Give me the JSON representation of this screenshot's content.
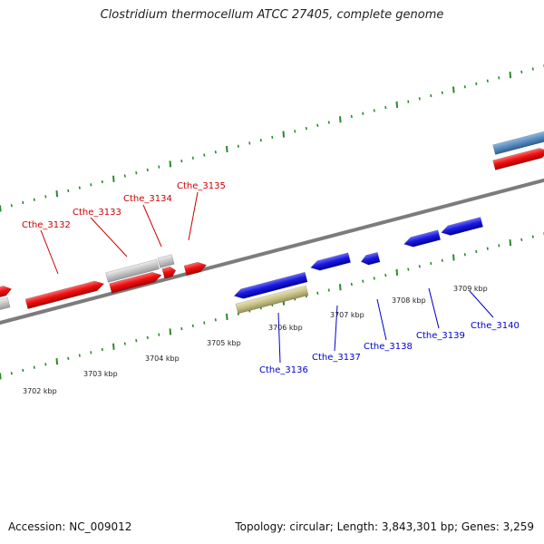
{
  "title": "Clostridium thermocellum ATCC 27405, complete genome",
  "footer": {
    "accession": "Accession: NC_009012",
    "summary": "Topology: circular; Length: 3,843,301 bp; Genes: 3,259"
  },
  "colors": {
    "forward_strand": "#ee1111",
    "reverse_strand": "#1a1ae0",
    "pseudo_or_other": "#c8c8c8",
    "olive_feature": "#c9c48a",
    "rna_feature": "#5b8ec2",
    "backbone": "#888888",
    "ticks": "#2a8a2a",
    "forward_label": "#cc0000",
    "reverse_label": "#0000cc"
  },
  "scale_labels": [
    "3702 kbp",
    "3703 kbp",
    "3704 kbp",
    "3705 kbp",
    "3706 kbp",
    "3707 kbp",
    "3708 kbp",
    "3709 kbp"
  ],
  "forward_genes": [
    "Cthe_3132",
    "Cthe_3133",
    "Cthe_3134",
    "Cthe_3135"
  ],
  "reverse_genes": [
    "Cthe_3136",
    "Cthe_3137",
    "Cthe_3138",
    "Cthe_3139",
    "Cthe_3140"
  ]
}
